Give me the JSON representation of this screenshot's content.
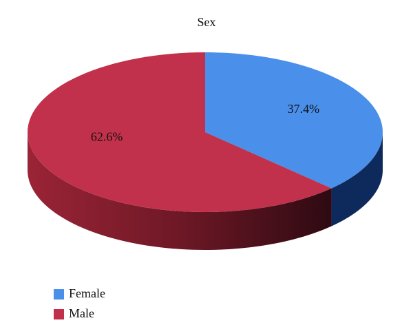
{
  "chart_data": {
    "type": "pie",
    "title": "Sex",
    "categories": [
      "Female",
      "Male"
    ],
    "values": [
      37.4,
      62.6
    ],
    "value_labels": [
      "37.4%",
      "62.6%"
    ],
    "colors": [
      "#4a8fea",
      "#c1314b"
    ],
    "side_colors": [
      "#0e2a5c",
      "#7a1a2a"
    ],
    "legend": "bottom-left"
  }
}
